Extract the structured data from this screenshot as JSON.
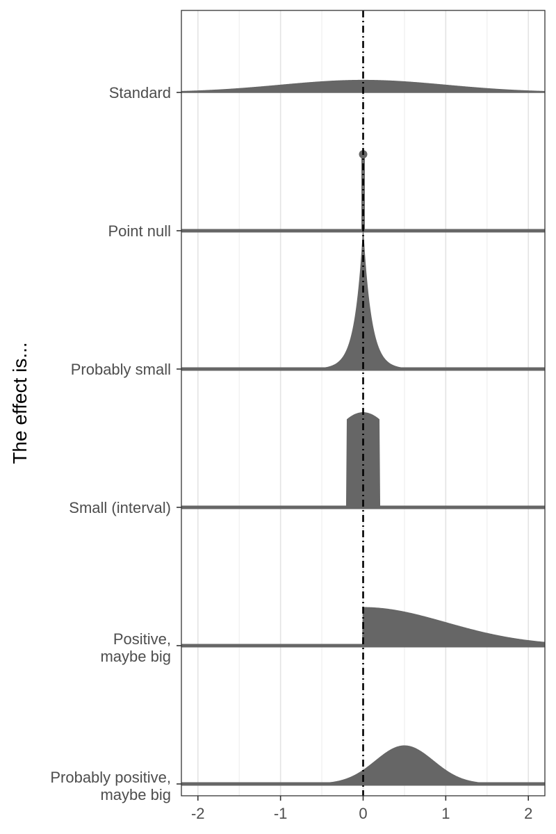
{
  "chart_data": {
    "type": "ridgeline",
    "ylabel": "The effect is...",
    "xlabel": "",
    "xlim": [
      -2.2,
      2.2
    ],
    "x_ticks": [
      -2,
      -1,
      0,
      1,
      2
    ],
    "x_tick_labels": [
      "-2",
      "-1",
      "0",
      "1",
      "2"
    ],
    "x_minor_gridlines": [
      -1.5,
      -0.5,
      0.5,
      1.5
    ],
    "reference_line": {
      "x": 0,
      "style": "dotdash",
      "color": "#000000"
    },
    "fill_color": "#666666",
    "grid": true,
    "series": [
      {
        "name": "Standard",
        "label_lines": [
          "Standard"
        ],
        "kind": "normal",
        "mean": 0,
        "sd": 1,
        "relative_peak": 0.08
      },
      {
        "name": "Point null",
        "label_lines": [
          "Point null"
        ],
        "kind": "point",
        "at": 0,
        "relative_peak": 0.5
      },
      {
        "name": "Probably small",
        "label_lines": [
          "Probably small"
        ],
        "kind": "laplace",
        "mean": 0,
        "scale": 0.1,
        "relative_peak": 0.9
      },
      {
        "name": "Small (interval)",
        "label_lines": [
          "Small (interval)"
        ],
        "kind": "truncated-normal",
        "mean": 0,
        "sd": 0.5,
        "lower": -0.2,
        "upper": 0.2,
        "relative_peak": 0.62
      },
      {
        "name": "Positive, maybe big",
        "label_lines": [
          "Positive,",
          "maybe big"
        ],
        "kind": "half-normal",
        "mean": 0,
        "sd": 1,
        "lower": 0,
        "relative_peak": 0.25
      },
      {
        "name": "Probably positive, maybe big",
        "label_lines": [
          "Probably positive,",
          "maybe big"
        ],
        "kind": "normal",
        "mean": 0.5,
        "sd": 0.35,
        "relative_peak": 0.25
      }
    ]
  }
}
